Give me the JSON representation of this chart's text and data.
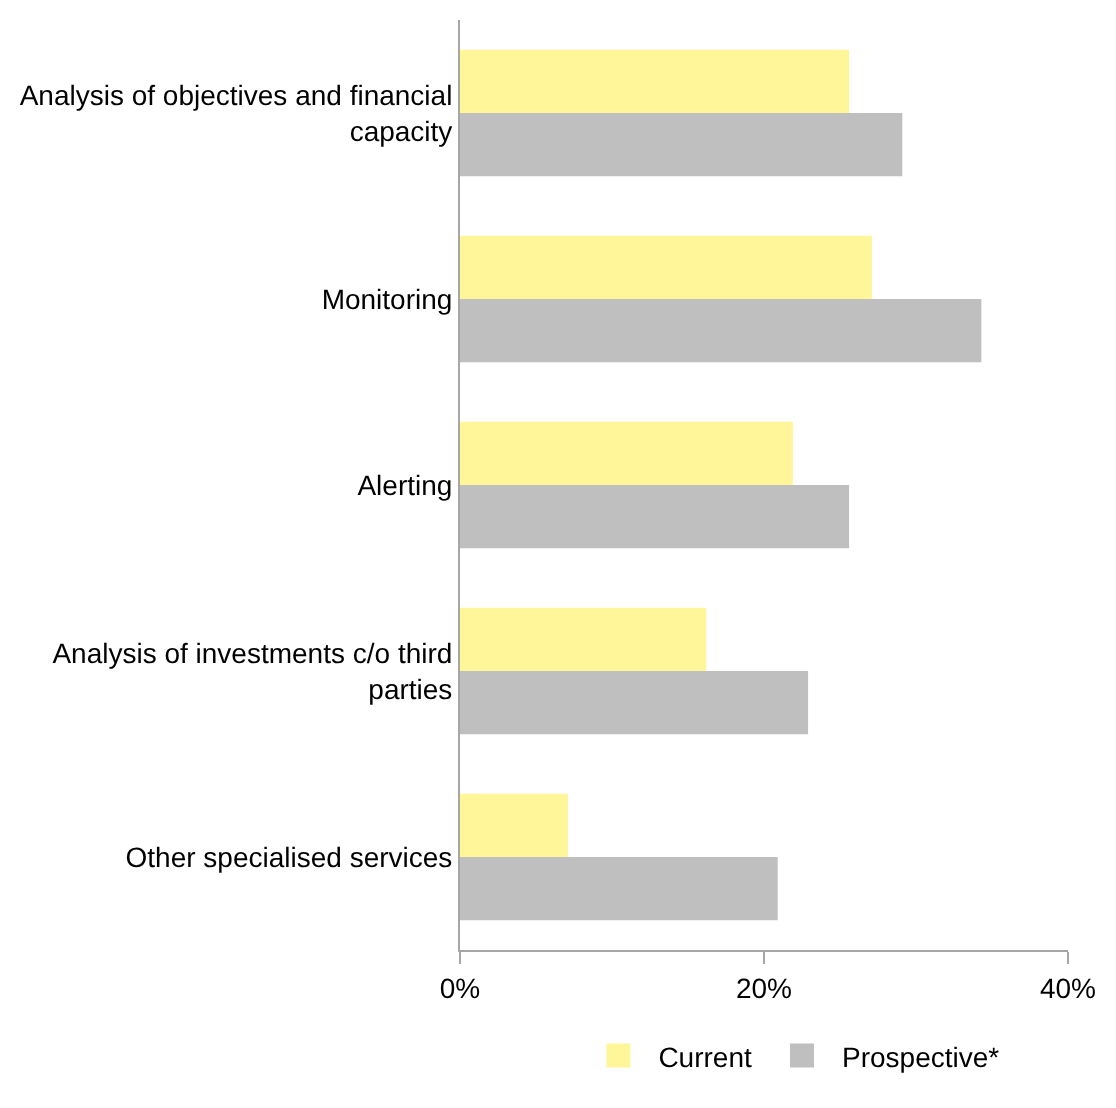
{
  "chart_data": {
    "type": "bar",
    "orientation": "horizontal",
    "categories": [
      "Analysis of objectives and financial capacity",
      "Monitoring",
      "Alerting",
      "Analysis of investments c/o third parties",
      "Other specialised services"
    ],
    "series": [
      {
        "name": "Current",
        "color": "#fff69a",
        "values": [
          25.6,
          27.1,
          21.9,
          16.2,
          7.1
        ]
      },
      {
        "name": "Prospective*",
        "color": "#bfbfbf",
        "values": [
          29.1,
          34.3,
          25.6,
          22.9,
          20.9
        ]
      }
    ],
    "xlim": [
      0,
      40
    ],
    "xticks": [
      {
        "value": 0,
        "label": "0%"
      },
      {
        "value": 20,
        "label": "20%"
      },
      {
        "value": 40,
        "label": "40%"
      }
    ],
    "legend": "bottom"
  }
}
